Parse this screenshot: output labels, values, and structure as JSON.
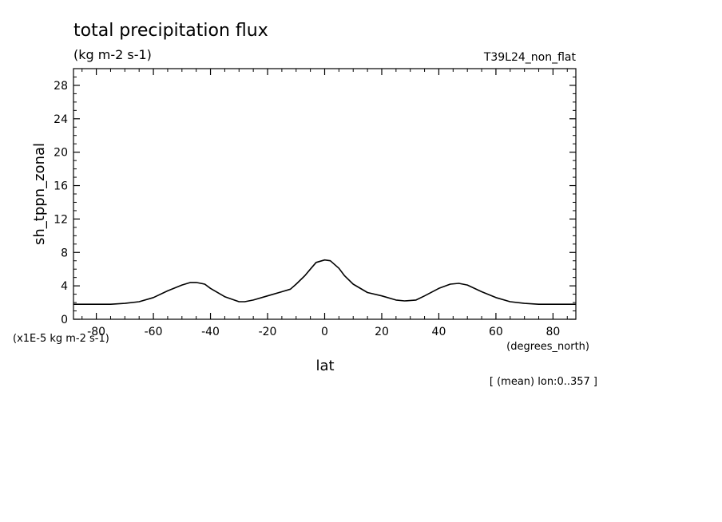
{
  "chart_data": {
    "type": "line",
    "title": "total precipitation flux",
    "subtitle": "(kg m-2 s-1)",
    "run_label": "T39L24_non_flat",
    "xlabel": "lat",
    "ylabel": "sh_tppn_zonal",
    "x_unit": "(degrees_north)",
    "y_unit": "(x1E-5 kg m-2 s-1)",
    "footnote": "[ (mean) lon:0..357 ]",
    "xlim": [
      -88,
      88
    ],
    "ylim": [
      0,
      30
    ],
    "x_ticks": [
      -80,
      -60,
      -40,
      -20,
      0,
      20,
      40,
      60,
      80
    ],
    "x_tick_labels": [
      "-80",
      "-60",
      "-40",
      "-20",
      "0",
      "20",
      "40",
      "60",
      "80"
    ],
    "y_ticks": [
      0,
      4,
      8,
      12,
      16,
      20,
      24,
      28
    ],
    "y_tick_labels": [
      "0",
      "4",
      "8",
      "12",
      "16",
      "20",
      "24",
      "28"
    ],
    "line_color": "#000000",
    "series": [
      {
        "x": [
          -88,
          -80,
          -75,
          -70,
          -65,
          -60,
          -55,
          -50,
          -47,
          -45,
          -42,
          -40,
          -35,
          -30,
          -28,
          -25,
          -20,
          -15,
          -12,
          -10,
          -7,
          -5,
          -3,
          0,
          2,
          5,
          7,
          10,
          15,
          20,
          25,
          28,
          32,
          35,
          40,
          44,
          47,
          50,
          55,
          60,
          65,
          70,
          75,
          80,
          88
        ],
        "y": [
          1.8,
          1.8,
          1.8,
          1.9,
          2.1,
          2.6,
          3.4,
          4.1,
          4.4,
          4.4,
          4.2,
          3.7,
          2.7,
          2.1,
          2.1,
          2.3,
          2.8,
          3.3,
          3.6,
          4.2,
          5.2,
          6.0,
          6.8,
          7.1,
          7.0,
          6.1,
          5.2,
          4.2,
          3.2,
          2.8,
          2.3,
          2.2,
          2.3,
          2.8,
          3.7,
          4.2,
          4.3,
          4.1,
          3.3,
          2.6,
          2.1,
          1.9,
          1.8,
          1.8,
          1.8
        ]
      }
    ]
  }
}
